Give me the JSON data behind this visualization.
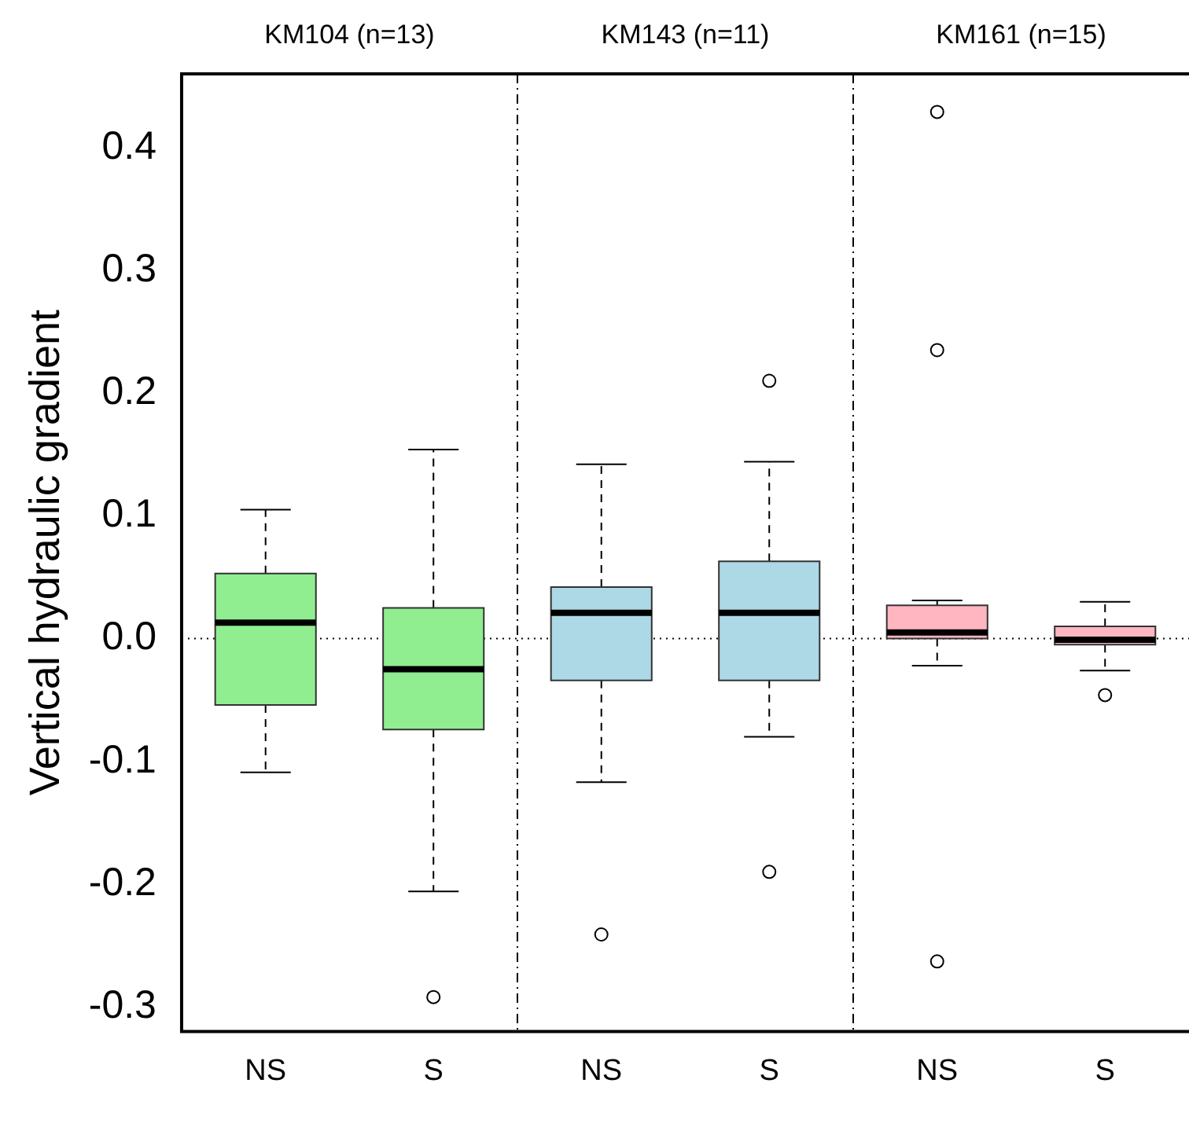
{
  "chart_data": {
    "type": "box",
    "ylabel": "Vertical hydraulic gradient",
    "categories": [
      "NS",
      "S",
      "NS",
      "S",
      "NS",
      "S"
    ],
    "colors": [
      "#90ee90",
      "#90ee90",
      "#add8e6",
      "#add8e6",
      "#ffb6c1",
      "#ffb6c1"
    ],
    "boxes": [
      {
        "low": -0.109,
        "q1": -0.054,
        "median": 0.013,
        "q3": 0.053,
        "high": 0.105
      },
      {
        "low": -0.206,
        "q1": -0.074,
        "median": -0.025,
        "q3": 0.025,
        "high": 0.154,
        "outliers": [
          -0.292
        ]
      },
      {
        "low": -0.117,
        "q1": -0.034,
        "median": 0.021,
        "q3": 0.042,
        "high": 0.142,
        "outliers": [
          -0.241
        ]
      },
      {
        "low": -0.08,
        "q1": -0.034,
        "median": 0.021,
        "q3": 0.063,
        "high": 0.144,
        "outliers": [
          0.21,
          -0.19
        ]
      },
      {
        "low": -0.022,
        "q1": 0.0,
        "median": 0.005,
        "q3": 0.027,
        "high": 0.031,
        "outliers": [
          0.429,
          0.235,
          -0.263
        ]
      },
      {
        "low": -0.026,
        "q1": -0.005,
        "median": -0.001,
        "q3": 0.01,
        "high": 0.03,
        "outliers": [
          -0.046
        ]
      }
    ],
    "ylim": [
      -0.32,
      0.46
    ],
    "yticks": [
      -0.3,
      -0.2,
      -0.1,
      {
        "value": 0,
        "label": "0.0"
      },
      0.1,
      0.2,
      0.3,
      0.4
    ],
    "ref_lines": [
      {
        "axis": "y",
        "value": 0,
        "line_style": "dotted",
        "color": "#000000"
      }
    ],
    "annotations": [
      "KM104 (n=13)",
      "KM143 (n=11)",
      "KM161 (n=15)"
    ],
    "grid": false,
    "legend": false,
    "marker": "circle"
  }
}
